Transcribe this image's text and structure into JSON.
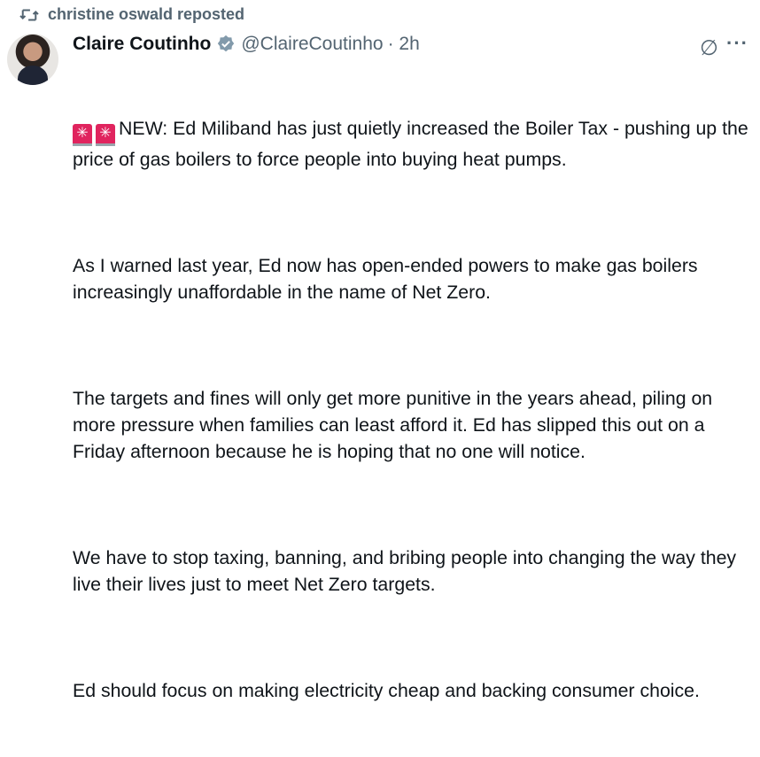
{
  "repost": {
    "icon": "repost-icon",
    "text": "christine oswald reposted"
  },
  "tweet": {
    "author": "Claire Coutinho",
    "verified_badge_color": "#829aab",
    "handle": "@ClaireCoutinho",
    "time": "· 2h",
    "emoji": "🚨🚨",
    "paragraphs": [
      "NEW: Ed Miliband has just quietly increased the Boiler Tax - pushing up the price of gas boilers to force people into buying heat pumps.",
      "As I warned last year, Ed now has open-ended powers to make gas boilers increasingly unaffordable in the name of Net Zero.",
      "The targets and fines will only get more punitive in the years ahead, piling on more pressure when families can least afford it. Ed has slipped this out on a Friday afternoon because he is hoping that no one will notice.",
      "We have to stop taxing, banning, and bribing people into changing the way they live their lives just to meet Net Zero targets.",
      "Ed should focus on making electricity cheap and backing consumer choice."
    ]
  }
}
